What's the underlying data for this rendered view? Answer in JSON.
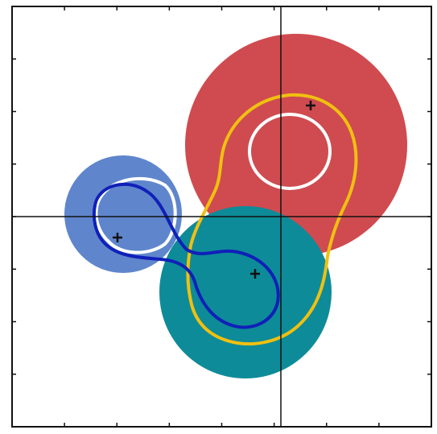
{
  "colors": {
    "background": "#ffffff",
    "frame": "#111111",
    "axis": "#111111",
    "red_disk": "#cf4b4f",
    "teal_disk": "#0e8b98",
    "blue_disk": "#5f86cc",
    "white_curve": "#ffffff",
    "yellow_curve": "#f0c010",
    "navy_curve": "#1020b8",
    "marker": "#111111"
  },
  "elements": {
    "disks": [
      "red-disk",
      "teal-disk",
      "blue-disk"
    ],
    "curves": [
      "white-loop-red",
      "white-loop-blue",
      "yellow-outer-loop",
      "navy-figure-eight"
    ],
    "markers": [
      "marker-red",
      "marker-teal",
      "marker-blue"
    ],
    "ticks_per_side": 7
  }
}
